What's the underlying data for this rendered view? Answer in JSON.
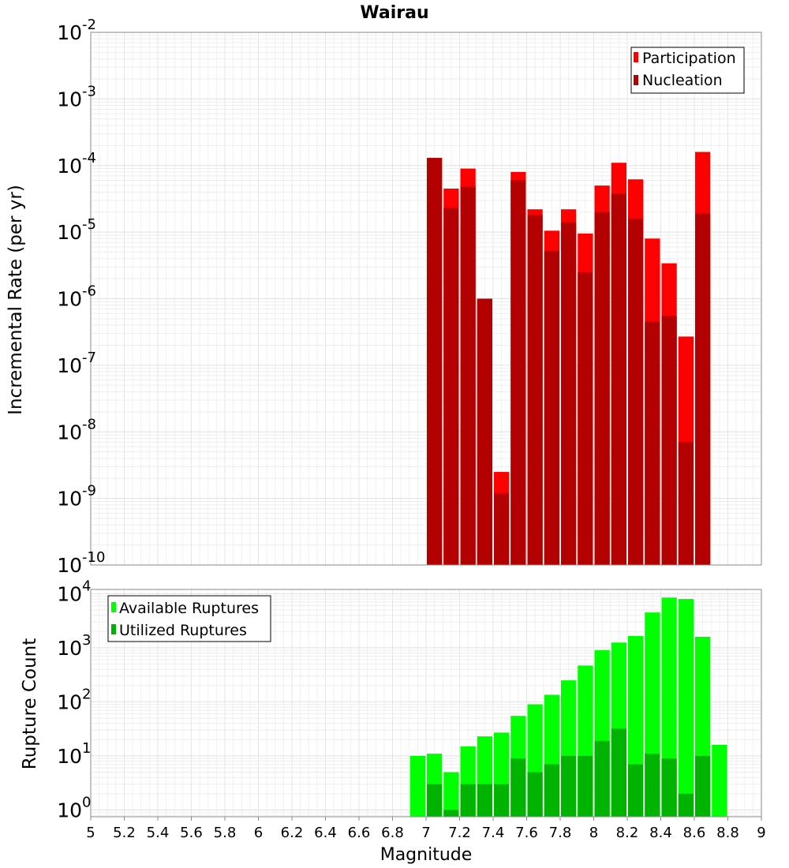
{
  "chart_data": [
    {
      "type": "bar",
      "title": "Wairau",
      "xlabel": "",
      "ylabel": "Incremental Rate (per yr)",
      "y_scale": "log",
      "ylim": [
        1e-10,
        0.01
      ],
      "xlim": [
        5,
        9
      ],
      "grid": true,
      "legend_position": "top-right",
      "y_tick_exponents": [
        "-2",
        "-3",
        "-4",
        "-5",
        "-6",
        "-7",
        "-8",
        "-9",
        "-10"
      ],
      "x": [
        7.05,
        7.15,
        7.25,
        7.35,
        7.45,
        7.55,
        7.65,
        7.75,
        7.85,
        7.95,
        8.05,
        8.15,
        8.25,
        8.35,
        8.45,
        8.55,
        8.65
      ],
      "series": [
        {
          "name": "Participation",
          "color": "#ff0000",
          "values": [
            0.00013,
            4.5e-05,
            9e-05,
            1e-06,
            2.5e-09,
            8e-05,
            2.2e-05,
            1.05e-05,
            2.2e-05,
            9.5e-06,
            5e-05,
            0.00011,
            6.2e-05,
            8e-06,
            3.4e-06,
            2.7e-07,
            0.00016
          ]
        },
        {
          "name": "Nucleation",
          "color": "#b30000",
          "values": [
            0.00013,
            2.3e-05,
            4.8e-05,
            1e-06,
            1.2e-09,
            6e-05,
            1.8e-05,
            5.2e-06,
            1.4e-05,
            2.5e-06,
            2e-05,
            3.8e-05,
            1.6e-05,
            4.5e-07,
            5.5e-07,
            7e-09,
            1.9e-05
          ]
        }
      ]
    },
    {
      "type": "bar",
      "title": "",
      "xlabel": "Magnitude",
      "ylabel": "Rupture Count",
      "y_scale": "log",
      "ylim": [
        0.75,
        12000
      ],
      "xlim": [
        5,
        9
      ],
      "grid": true,
      "legend_position": "top-left",
      "y_tick_exponents": [
        "0",
        "1",
        "2",
        "3",
        "4"
      ],
      "x_tick_labels": [
        "5",
        "5.2",
        "5.4",
        "5.6",
        "5.8",
        "6",
        "6.2",
        "6.4",
        "6.6",
        "6.8",
        "7",
        "7.2",
        "7.4",
        "7.6",
        "7.8",
        "8",
        "8.2",
        "8.4",
        "8.6",
        "8.8",
        "9"
      ],
      "x": [
        6.95,
        7.05,
        7.15,
        7.25,
        7.35,
        7.45,
        7.55,
        7.65,
        7.75,
        7.85,
        7.95,
        8.05,
        8.15,
        8.25,
        8.35,
        8.45,
        8.55,
        8.65,
        8.75
      ],
      "series": [
        {
          "name": "Available Ruptures",
          "color": "#00ff00",
          "values": [
            10,
            11,
            5,
            15,
            23,
            27,
            55,
            90,
            135,
            250,
            470,
            900,
            1250,
            1650,
            4500,
            8500,
            8000,
            1600,
            16
          ]
        },
        {
          "name": "Utilized Ruptures",
          "color": "#00b300",
          "values": [
            0,
            3,
            1,
            3,
            3,
            3,
            9,
            5,
            7,
            10,
            10,
            19,
            32,
            7,
            11,
            9,
            2,
            10,
            0
          ]
        }
      ]
    }
  ]
}
